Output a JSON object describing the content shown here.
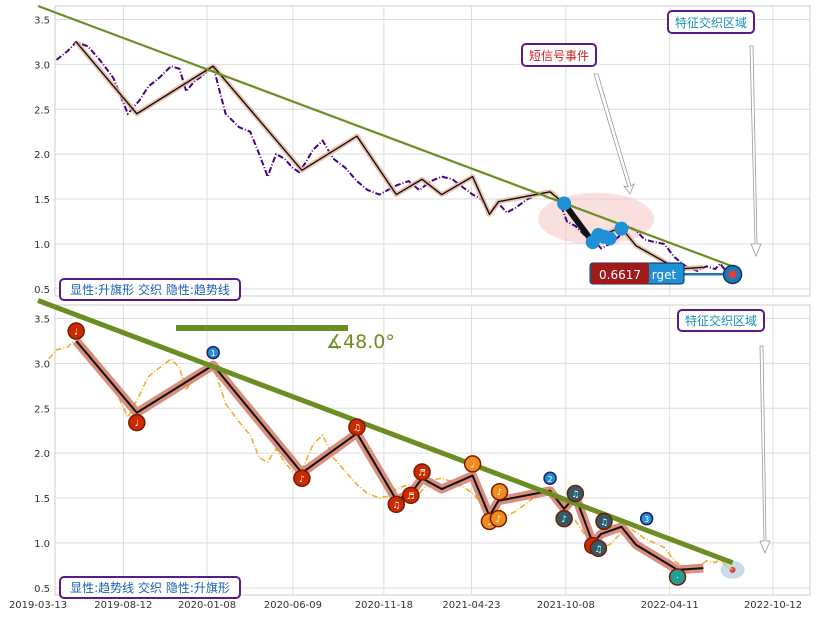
{
  "chart_data": [
    {
      "type": "line",
      "panel": "top",
      "ylim": [
        0.42,
        3.65
      ],
      "yticks": [
        "0.5",
        "1.0",
        "1.5",
        "2.0",
        "2.5",
        "3.0",
        "3.5"
      ],
      "grid": true,
      "series": [
        {
          "role": "price",
          "color": "#4b0082",
          "style": "dash-dot",
          "x": [
            "2019-04-15",
            "2019-05-05",
            "2019-05-20",
            "2019-06-10",
            "2019-07-01",
            "2019-07-25",
            "2019-08-20",
            "2019-09-10",
            "2019-09-25",
            "2019-10-15",
            "2019-11-05",
            "2019-11-20",
            "2019-12-02",
            "2019-12-15",
            "2020-01-01",
            "2020-01-19",
            "2020-02-10",
            "2020-03-05",
            "2020-03-25",
            "2020-04-10",
            "2020-04-25",
            "2020-05-10",
            "2020-05-25",
            "2020-06-08",
            "2020-06-20",
            "2020-07-01",
            "2020-07-15",
            "2020-08-01",
            "2020-08-20",
            "2020-09-10",
            "2020-10-01",
            "2020-10-20",
            "2020-11-10",
            "2020-11-25",
            "2020-12-10",
            "2021-01-01",
            "2021-01-20",
            "2021-02-10",
            "2021-03-01",
            "2021-03-20",
            "2021-04-10",
            "2021-04-25",
            "2021-05-10",
            "2021-05-25",
            "2021-06-10",
            "2021-06-25",
            "2021-07-10",
            "2021-08-01",
            "2021-08-20",
            "2021-09-10",
            "2021-09-25",
            "2021-10-10",
            "2021-10-25",
            "2021-11-10",
            "2021-11-25",
            "2021-12-10",
            "2021-12-25",
            "2022-01-10",
            "2022-01-25",
            "2022-02-10",
            "2022-02-25",
            "2022-03-15",
            "2022-04-01",
            "2022-04-20",
            "2022-05-10",
            "2022-05-30",
            "2022-06-15",
            "2022-07-01",
            "2022-07-10",
            "2022-07-20",
            "2022-08-01"
          ],
          "values": [
            3.05,
            3.15,
            3.25,
            3.2,
            3.05,
            2.85,
            2.45,
            2.6,
            2.75,
            2.85,
            2.98,
            2.95,
            2.7,
            2.8,
            2.88,
            2.98,
            2.45,
            2.3,
            2.25,
            2.0,
            1.75,
            2.0,
            1.95,
            1.85,
            1.8,
            1.9,
            2.05,
            2.15,
            1.95,
            1.85,
            1.7,
            1.6,
            1.55,
            1.6,
            1.65,
            1.7,
            1.6,
            1.7,
            1.75,
            1.72,
            1.62,
            1.55,
            1.5,
            1.35,
            1.45,
            1.35,
            1.4,
            1.5,
            1.55,
            1.58,
            1.5,
            1.25,
            1.2,
            1.1,
            1.05,
            0.95,
            1.0,
            1.08,
            1.2,
            1.15,
            1.05,
            1.02,
            1.0,
            0.85,
            0.75,
            0.7,
            0.75,
            0.72,
            0.78,
            0.7,
            0.66
          ]
        }
      ],
      "zigzag": {
        "x": [
          "2019-05-20",
          "2019-09-05",
          "2020-01-19",
          "2020-06-25",
          "2020-10-01",
          "2020-12-10",
          "2021-01-25",
          "2021-03-01",
          "2021-04-25",
          "2021-05-25",
          "2021-06-10",
          "2021-09-10",
          "2021-10-05",
          "2021-11-25",
          "2021-12-10",
          "2022-01-15",
          "2022-02-10",
          "2022-04-25",
          "2022-06-10"
        ],
        "values": [
          3.25,
          2.45,
          2.98,
          1.82,
          2.2,
          1.55,
          1.72,
          1.55,
          1.75,
          1.33,
          1.47,
          1.58,
          1.45,
          1.02,
          1.1,
          1.18,
          0.98,
          0.72,
          0.74
        ]
      },
      "trendline": {
        "x": [
          "2019-03-13",
          "2022-08-01"
        ],
        "values": [
          3.65,
          0.75
        ],
        "color": "#6b8e23"
      },
      "target_line": {
        "x": [
          "2022-03-01",
          "2022-08-01"
        ],
        "value": 0.6617,
        "color": "#1f77b4"
      },
      "short_signal_points": {
        "color": "#1f8fd6",
        "x": [
          "2021-10-05",
          "2021-11-25",
          "2021-12-05",
          "2021-12-15",
          "2021-12-25",
          "2022-01-15"
        ],
        "values": [
          1.45,
          1.02,
          1.1,
          1.08,
          1.06,
          1.17
        ]
      },
      "short_signal_ellipse": {
        "x": "2021-12-01",
        "y": 1.28
      },
      "final_marker": {
        "x": "2022-08-01",
        "value": 0.66
      },
      "labels": {
        "short_signal": "短信号事件",
        "feature_zone": "特征交织区域",
        "pattern": "显性:升旗形 交织 隐性:趋势线",
        "target_value": "0.6617",
        "target_word": "rget"
      }
    },
    {
      "type": "line",
      "panel": "bottom",
      "ylim": [
        0.42,
        3.65
      ],
      "yticks": [
        "0.5",
        "1.0",
        "1.5",
        "2.0",
        "2.5",
        "3.0",
        "3.5"
      ],
      "xticks": [
        {
          "label": "2019-03-13",
          "x": "2019-03-13"
        },
        {
          "label": "2019-08-12",
          "x": "2019-08-12"
        },
        {
          "label": "2020-01-08",
          "x": "2020-01-08"
        },
        {
          "label": "2020-06-09",
          "x": "2020-06-09"
        },
        {
          "label": "2020-11-18",
          "x": "2020-11-18"
        },
        {
          "label": "2021-04-23",
          "x": "2021-04-23"
        },
        {
          "label": "2021-10-08",
          "x": "2021-10-08"
        },
        {
          "label": "2022-04-11",
          "x": "2022-04-11"
        },
        {
          "label": "2022-10-12",
          "x": "2022-10-12"
        }
      ],
      "grid": true,
      "series": [
        {
          "role": "price",
          "color": "#f0b030",
          "style": "dash-dot",
          "x": [
            "2019-04-01",
            "2019-04-15",
            "2019-05-05",
            "2019-05-20",
            "2019-06-10",
            "2019-07-01",
            "2019-07-25",
            "2019-08-20",
            "2019-09-10",
            "2019-09-25",
            "2019-10-15",
            "2019-11-05",
            "2019-11-20",
            "2019-12-02",
            "2019-12-15",
            "2020-01-01",
            "2020-01-19",
            "2020-02-10",
            "2020-03-05",
            "2020-03-25",
            "2020-04-10",
            "2020-04-25",
            "2020-05-10",
            "2020-05-25",
            "2020-06-08",
            "2020-06-20",
            "2020-07-01",
            "2020-07-15",
            "2020-08-01",
            "2020-08-20",
            "2020-09-10",
            "2020-10-01",
            "2020-10-20",
            "2020-11-10",
            "2020-11-25",
            "2020-12-10",
            "2021-01-01",
            "2021-01-20",
            "2021-02-10",
            "2021-03-01",
            "2021-03-20",
            "2021-04-10",
            "2021-04-25",
            "2021-05-10",
            "2021-05-25",
            "2021-06-10",
            "2021-06-25",
            "2021-07-10",
            "2021-08-01",
            "2021-08-20",
            "2021-09-10",
            "2021-09-25",
            "2021-10-10",
            "2021-10-25",
            "2021-11-10",
            "2021-11-25",
            "2021-12-10",
            "2021-12-25",
            "2022-01-10",
            "2022-01-25",
            "2022-02-10",
            "2022-02-25",
            "2022-03-15",
            "2022-04-01",
            "2022-04-20",
            "2022-05-10",
            "2022-05-30",
            "2022-06-15",
            "2022-07-01",
            "2022-07-10",
            "2022-07-20",
            "2022-08-01"
          ],
          "values": [
            3.05,
            3.15,
            3.18,
            3.28,
            3.15,
            2.95,
            2.75,
            2.4,
            2.65,
            2.85,
            2.95,
            3.05,
            2.95,
            2.7,
            2.85,
            2.9,
            2.98,
            2.55,
            2.35,
            2.2,
            1.95,
            1.9,
            2.05,
            1.9,
            1.8,
            1.75,
            1.9,
            2.1,
            2.2,
            1.95,
            1.8,
            1.65,
            1.55,
            1.5,
            1.52,
            1.6,
            1.65,
            1.55,
            1.7,
            1.72,
            1.68,
            1.62,
            1.55,
            1.45,
            1.3,
            1.4,
            1.3,
            1.35,
            1.45,
            1.55,
            1.6,
            1.5,
            1.3,
            1.25,
            1.1,
            1.02,
            0.95,
            0.98,
            1.08,
            1.18,
            1.12,
            1.05,
            1.0,
            0.95,
            0.8,
            0.7,
            0.72,
            0.8,
            0.78,
            0.82,
            0.75,
            0.7
          ]
        }
      ],
      "zigzag": {
        "x": [
          "2019-05-20",
          "2019-09-05",
          "2020-01-19",
          "2020-06-25",
          "2020-10-01",
          "2020-12-10",
          "2021-01-05",
          "2021-01-25",
          "2021-03-01",
          "2021-04-25",
          "2021-05-25",
          "2021-06-10",
          "2021-09-10",
          "2021-10-05",
          "2021-10-25",
          "2021-11-25",
          "2021-12-10",
          "2022-01-15",
          "2022-02-10",
          "2022-04-25",
          "2022-06-10"
        ],
        "values": [
          3.25,
          2.45,
          2.98,
          1.78,
          2.22,
          1.48,
          1.55,
          1.72,
          1.6,
          1.75,
          1.3,
          1.47,
          1.58,
          1.38,
          1.52,
          1.0,
          1.1,
          1.18,
          0.98,
          0.7,
          0.72
        ]
      },
      "trendline": {
        "x": [
          "2019-03-13",
          "2022-08-01"
        ],
        "values": [
          3.7,
          0.78
        ],
        "color": "#6b8e23"
      },
      "angle_label": "∡48.0°",
      "pivot_markers": [
        {
          "x": "2019-05-20",
          "value": 3.36,
          "color": "#cc2a00",
          "glyph": "♩"
        },
        {
          "x": "2019-09-05",
          "value": 2.34,
          "color": "#cc2a00",
          "glyph": "♩"
        },
        {
          "x": "2020-01-19",
          "value": 3.12,
          "color": "#1f8fd6",
          "glyph": "1"
        },
        {
          "x": "2020-06-25",
          "value": 1.72,
          "color": "#cc2a00",
          "glyph": "♪"
        },
        {
          "x": "2020-10-01",
          "value": 2.29,
          "color": "#cc2a00",
          "glyph": "♫"
        },
        {
          "x": "2020-12-10",
          "value": 1.43,
          "color": "#cc2a00",
          "glyph": "♫"
        },
        {
          "x": "2021-01-05",
          "value": 1.53,
          "color": "#cc2a00",
          "glyph": "♬"
        },
        {
          "x": "2021-01-25",
          "value": 1.79,
          "color": "#cc2a00",
          "glyph": "♬"
        },
        {
          "x": "2021-04-25",
          "value": 1.88,
          "color": "#f08c1e",
          "glyph": "♩"
        },
        {
          "x": "2021-05-25",
          "value": 1.24,
          "color": "#f08c1e",
          "glyph": "♩"
        },
        {
          "x": "2021-06-10",
          "value": 1.27,
          "color": "#f08c1e",
          "glyph": "♪"
        },
        {
          "x": "2021-06-12",
          "value": 1.57,
          "color": "#f08c1e",
          "glyph": "♪"
        },
        {
          "x": "2021-09-10",
          "value": 1.72,
          "color": "#1f8fd6",
          "glyph": "2"
        },
        {
          "x": "2021-10-05",
          "value": 1.27,
          "color": "#2e5a6a",
          "glyph": "♪"
        },
        {
          "x": "2021-10-25",
          "value": 1.55,
          "color": "#2e5a6a",
          "glyph": "♫"
        },
        {
          "x": "2021-11-25",
          "value": 0.97,
          "color": "#cc2a00",
          "glyph": "♩"
        },
        {
          "x": "2021-12-05",
          "value": 0.94,
          "color": "#2e5a6a",
          "glyph": "♫"
        },
        {
          "x": "2021-12-15",
          "value": 1.24,
          "color": "#2e5a6a",
          "glyph": "♫"
        },
        {
          "x": "2022-03-01",
          "value": 1.27,
          "color": "#1f8fd6",
          "glyph": "3"
        },
        {
          "x": "2022-04-25",
          "value": 0.62,
          "color": "#20a090",
          "glyph": "·"
        }
      ],
      "final_marker": {
        "x": "2022-08-01",
        "value": 0.7
      },
      "labels": {
        "feature_zone": "特征交织区域",
        "pattern": "显性:趋势线 交织 隐性:升旗形"
      }
    }
  ]
}
